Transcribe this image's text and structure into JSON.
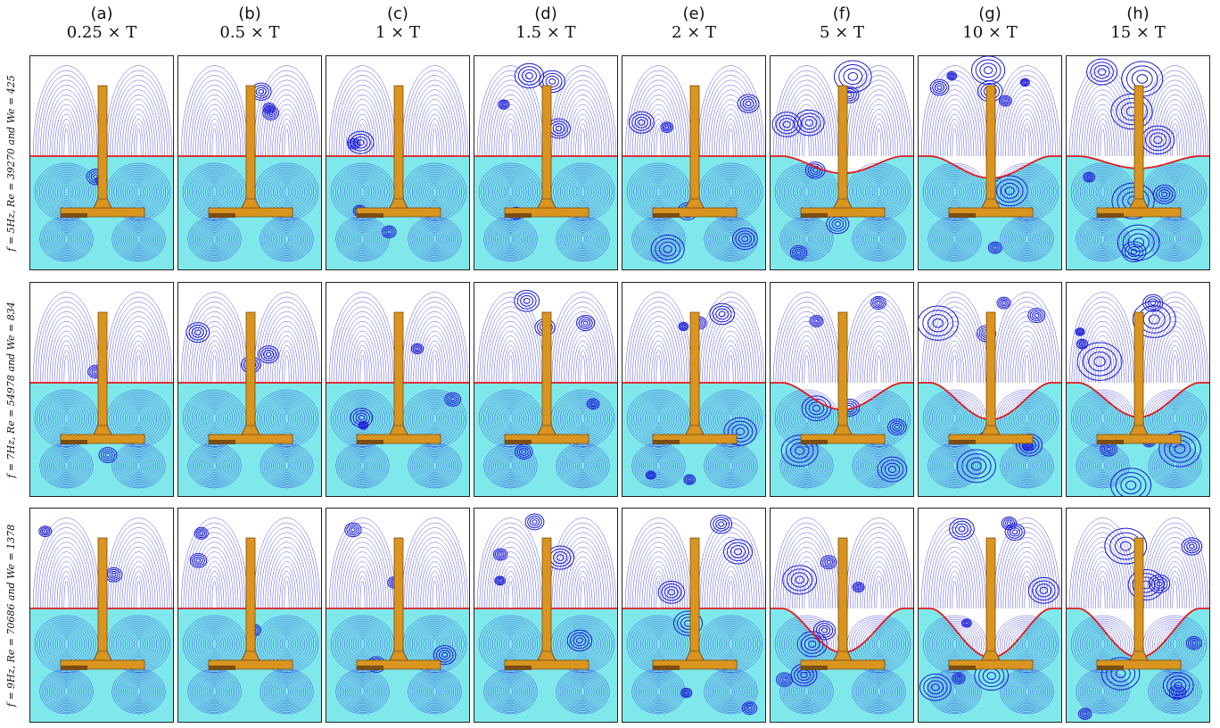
{
  "columns": [
    {
      "letter": "(a)",
      "time": "0.25 × T"
    },
    {
      "letter": "(b)",
      "time": "0.5 × T"
    },
    {
      "letter": "(c)",
      "time": "1 × T"
    },
    {
      "letter": "(d)",
      "time": "1.5 × T"
    },
    {
      "letter": "(e)",
      "time": "2 × T"
    },
    {
      "letter": "(f)",
      "time": "5 × T"
    },
    {
      "letter": "(g)",
      "time": "10 × T"
    },
    {
      "letter": "(h)",
      "time": "15 × T"
    }
  ],
  "rows": [
    {
      "label": "f = 5Hz, Re = 39270 and We = 425"
    },
    {
      "label": "f = 7Hz, Re = 54978 and We = 834"
    },
    {
      "label": "f = 9Hz, Re = 70686 and We = 1378"
    }
  ],
  "colors": {
    "air_background": "#ffffff",
    "water_background": "#7fe8ea",
    "streamline": "#1a1ad6",
    "interface": "#e31a1a",
    "impeller": "#d9951f",
    "impeller_dark": "#7a4d10",
    "panel_border": "#222222"
  },
  "interface_dip": [
    [
      0,
      0,
      0,
      0,
      0,
      0.35,
      0.45,
      0.25
    ],
    [
      0,
      0,
      0,
      0,
      0,
      0.55,
      0.75,
      0.7
    ],
    [
      0,
      0,
      0,
      0,
      0,
      0.9,
      1.0,
      1.0
    ]
  ]
}
